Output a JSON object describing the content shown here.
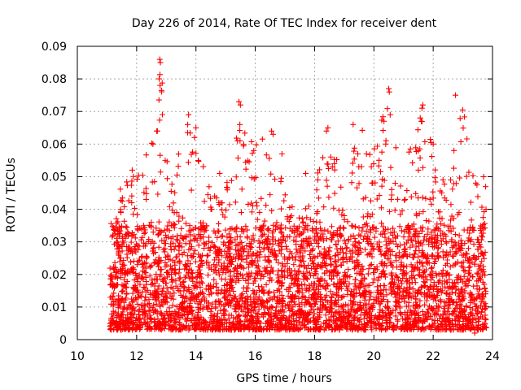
{
  "chart_data": {
    "type": "scatter",
    "title": "Day 226 of 2014, Rate Of TEC Index for receiver dent",
    "xlabel": "GPS time / hours",
    "ylabel": "ROTI / TECUs",
    "xlim": [
      10,
      24
    ],
    "ylim": [
      0,
      0.09
    ],
    "grid": true,
    "marker": "+",
    "marker_color": "#ff0000",
    "x_ticks": [
      10,
      12,
      14,
      16,
      18,
      20,
      22,
      24
    ],
    "y_ticks": [
      0,
      0.01,
      0.02,
      0.03,
      0.04,
      0.05,
      0.06,
      0.07,
      0.08,
      0.09
    ],
    "x_tick_labels": [
      "10",
      "12",
      "14",
      "16",
      "18",
      "20",
      "22",
      "24"
    ],
    "y_tick_labels": [
      "0",
      "0.01",
      "0.02",
      "0.03",
      "0.04",
      "0.05",
      "0.06",
      "0.07",
      "0.08",
      "0.09"
    ],
    "data_x_range": [
      11.1,
      23.8
    ],
    "series": [
      {
        "name": "ROTI",
        "envelope_x": [
          11.1,
          11.5,
          12.0,
          12.5,
          12.8,
          13.2,
          13.7,
          14.2,
          14.7,
          15.2,
          15.5,
          16.0,
          16.6,
          17.0,
          17.5,
          18.0,
          18.5,
          19.0,
          19.5,
          20.0,
          20.5,
          21.0,
          21.5,
          22.0,
          22.5,
          23.0,
          23.5,
          23.8
        ],
        "envelope_max": [
          0.035,
          0.048,
          0.052,
          0.06,
          0.086,
          0.05,
          0.069,
          0.055,
          0.045,
          0.05,
          0.073,
          0.06,
          0.064,
          0.05,
          0.04,
          0.05,
          0.065,
          0.05,
          0.066,
          0.058,
          0.077,
          0.05,
          0.072,
          0.06,
          0.045,
          0.075,
          0.05,
          0.05
        ],
        "typical_range": [
          0.003,
          0.035
        ],
        "points": [
          {
            "x": 12.78,
            "y": 0.086
          },
          {
            "x": 12.8,
            "y": 0.085
          },
          {
            "x": 12.76,
            "y": 0.08
          },
          {
            "x": 12.79,
            "y": 0.078
          },
          {
            "x": 13.75,
            "y": 0.069
          },
          {
            "x": 13.72,
            "y": 0.066
          },
          {
            "x": 14.0,
            "y": 0.065
          },
          {
            "x": 13.95,
            "y": 0.062
          },
          {
            "x": 15.45,
            "y": 0.073
          },
          {
            "x": 15.5,
            "y": 0.072
          },
          {
            "x": 15.48,
            "y": 0.066
          },
          {
            "x": 15.4,
            "y": 0.061
          },
          {
            "x": 16.55,
            "y": 0.064
          },
          {
            "x": 16.6,
            "y": 0.063
          },
          {
            "x": 18.45,
            "y": 0.065
          },
          {
            "x": 18.4,
            "y": 0.064
          },
          {
            "x": 19.3,
            "y": 0.066
          },
          {
            "x": 20.5,
            "y": 0.077
          },
          {
            "x": 20.52,
            "y": 0.076
          },
          {
            "x": 20.55,
            "y": 0.069
          },
          {
            "x": 21.65,
            "y": 0.072
          },
          {
            "x": 21.62,
            "y": 0.071
          },
          {
            "x": 21.6,
            "y": 0.067
          },
          {
            "x": 22.75,
            "y": 0.075
          },
          {
            "x": 22.7,
            "y": 0.058
          },
          {
            "x": 22.0,
            "y": 0.06
          },
          {
            "x": 20.4,
            "y": 0.06
          },
          {
            "x": 12.55,
            "y": 0.06
          },
          {
            "x": 12.7,
            "y": 0.064
          },
          {
            "x": 15.95,
            "y": 0.058
          },
          {
            "x": 16.9,
            "y": 0.057
          },
          {
            "x": 19.75,
            "y": 0.057
          },
          {
            "x": 21.5,
            "y": 0.052
          },
          {
            "x": 23.7,
            "y": 0.05
          },
          {
            "x": 11.85,
            "y": 0.052
          },
          {
            "x": 14.8,
            "y": 0.051
          },
          {
            "x": 17.7,
            "y": 0.051
          },
          {
            "x": 18.6,
            "y": 0.053
          },
          {
            "x": 11.2,
            "y": 0.032
          },
          {
            "x": 23.4,
            "y": 0.002
          }
        ]
      }
    ]
  }
}
